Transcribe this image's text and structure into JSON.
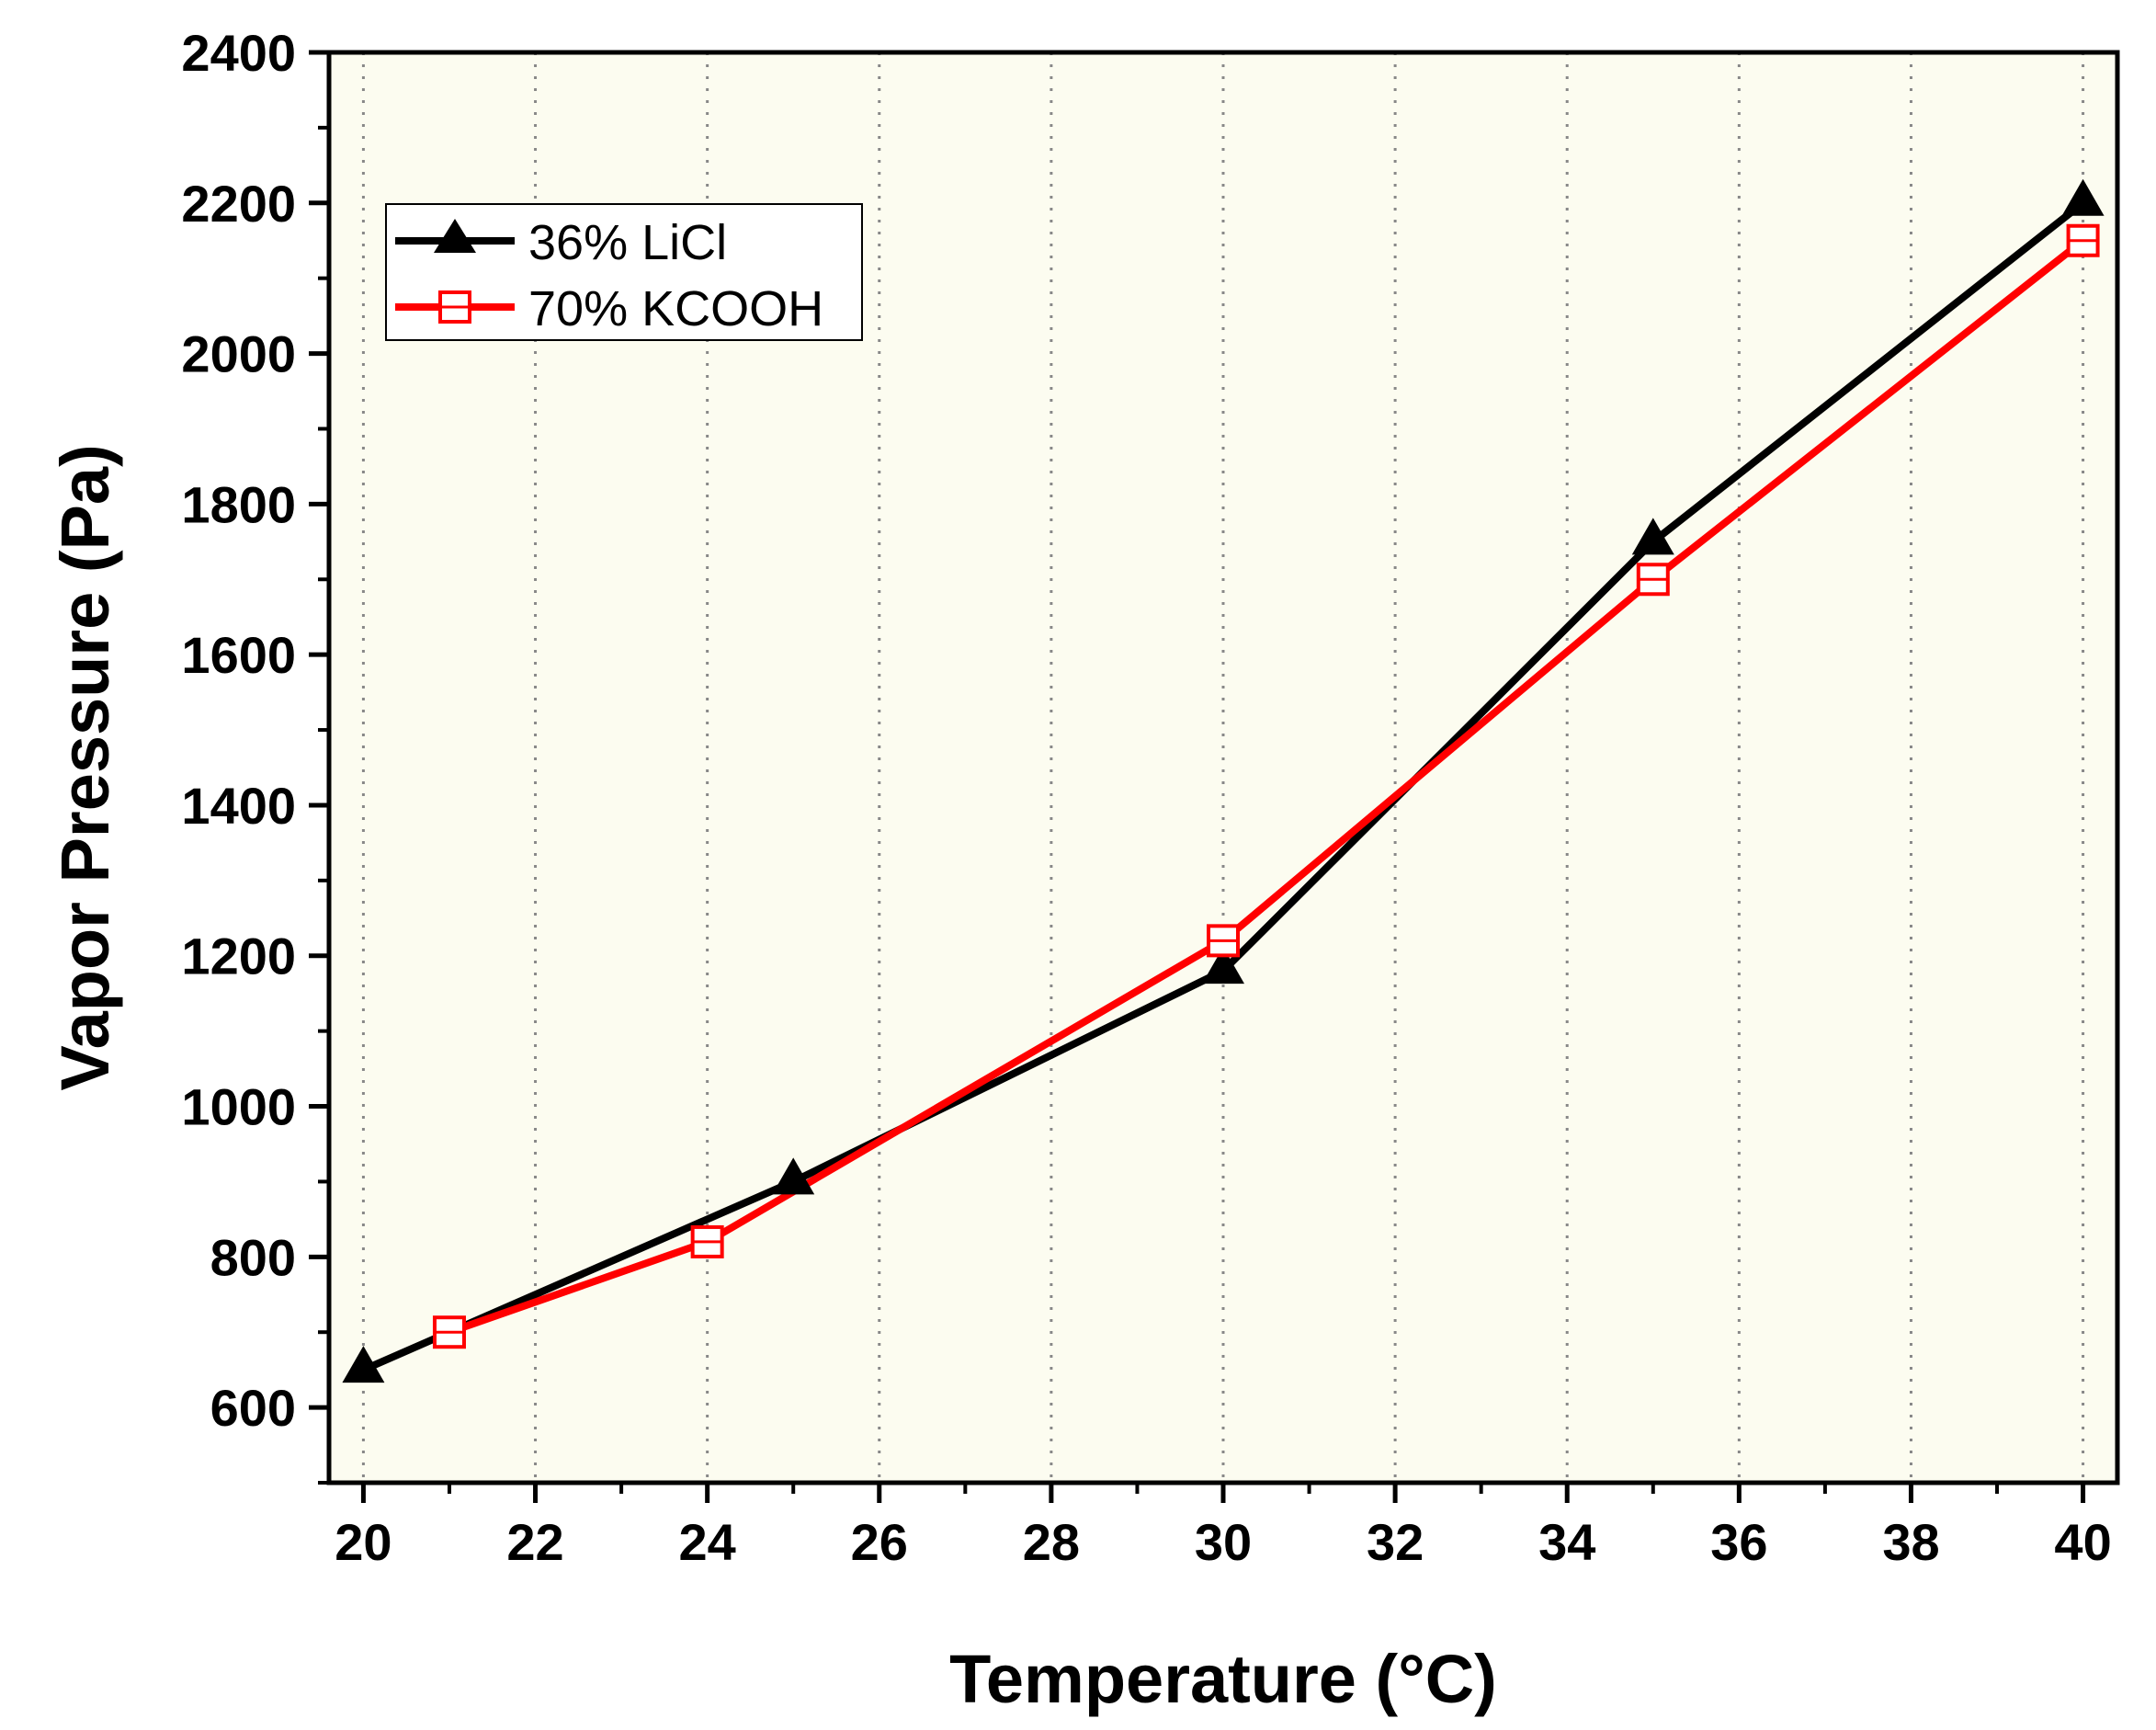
{
  "chart_data": {
    "type": "line",
    "title": "",
    "xlabel": "Temperature (°C)",
    "ylabel": "Vapor Pressure (Pa)",
    "xlim": [
      19.6,
      40.4
    ],
    "ylim": [
      500,
      2400
    ],
    "xticks": [
      20,
      22,
      24,
      26,
      28,
      30,
      32,
      34,
      36,
      38,
      40
    ],
    "yticks": [
      600,
      800,
      1000,
      1200,
      1400,
      1600,
      1800,
      2000,
      2200,
      2400
    ],
    "grid": "vertical dotted",
    "legend_position": "top-left",
    "plot_background": "#fcfcf0",
    "series": [
      {
        "name": "36% LiCl",
        "color": "#000000",
        "marker": "filled-triangle",
        "x": [
          20,
          25,
          30,
          35,
          40
        ],
        "y": [
          650,
          900,
          1180,
          1750,
          2200
        ]
      },
      {
        "name": "70% KCOOH",
        "color": "#ff0000",
        "marker": "open-square",
        "x": [
          21,
          24,
          30,
          35,
          40
        ],
        "y": [
          700,
          820,
          1220,
          1700,
          2150
        ]
      }
    ]
  }
}
